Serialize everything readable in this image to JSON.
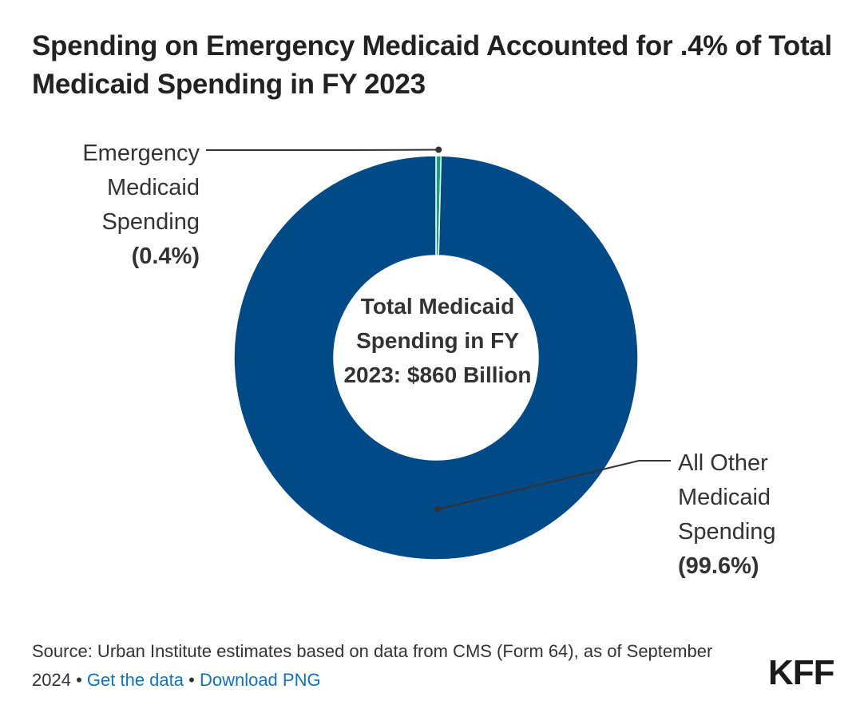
{
  "title": "Spending on Emergency Medicaid Accounted for .4% of Total Medicaid Spending in FY 2023",
  "chart_data": {
    "type": "pie",
    "subtype": "donut",
    "title": "Spending on Emergency Medicaid Accounted for .4% of Total Medicaid Spending in FY 2023",
    "center_label": "Total Medicaid Spending in FY 2023: $860 Billion",
    "slices": [
      {
        "name": "Emergency Medicaid Spending",
        "value": 0.4,
        "label": "(0.4%)",
        "color": "#11a57a"
      },
      {
        "name": "All Other Medicaid Spending",
        "value": 99.6,
        "label": "(99.6%)",
        "color": "#004a87"
      }
    ]
  },
  "labels": {
    "emergency_name": "Emergency Medicaid Spending",
    "emergency_pct": "(0.4%)",
    "other_name": "All Other Medicaid Spending",
    "other_pct": "(99.6%)"
  },
  "footer": {
    "source": "Source: Urban Institute estimates based on data from CMS (Form 64), as of September 2024",
    "sep1": "•",
    "get_data": "Get the data",
    "sep2": "•",
    "download": "Download PNG",
    "logo": "KFF"
  }
}
